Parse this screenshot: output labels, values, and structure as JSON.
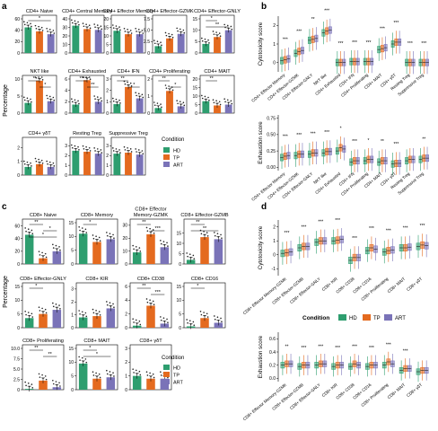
{
  "panel_letters": {
    "a": "a",
    "b": "b",
    "c": "c",
    "d": "d"
  },
  "colors": {
    "HD": "#2e9e6f",
    "TP": "#e46a1f",
    "ART": "#7a73b8",
    "frame": "#000000"
  },
  "legend_a": {
    "title": "Condition",
    "items": [
      "HD",
      "TP",
      "ART"
    ]
  },
  "legend_c": {
    "title": "Condition",
    "items": [
      "HD",
      "TP",
      "ART"
    ]
  },
  "legend_d": {
    "title": "Condition",
    "items": [
      "HD",
      "TP",
      "ART"
    ]
  },
  "ylabel_a": "Percentage",
  "ylabel_c": "Percentage",
  "chart_data": [
    {
      "type": "bar",
      "panel": "a",
      "categories": [
        "HD",
        "TP",
        "ART"
      ],
      "charts": [
        {
          "title": "CD4+ Naive",
          "ticks": [
            "0",
            "20",
            "40",
            "60"
          ],
          "ylim": [
            0,
            60
          ],
          "values": [
            45,
            38,
            33
          ],
          "sig": [
            {
              "pair": [
                0,
                2
              ],
              "label": "*"
            }
          ]
        },
        {
          "title": "CD4+ Central Memory",
          "ticks": [
            "0",
            "10",
            "20",
            "30",
            "40"
          ],
          "ylim": [
            0,
            40
          ],
          "values": [
            32,
            28,
            27
          ],
          "sig": []
        },
        {
          "title": "CD4+ Effector Memory",
          "ticks": [
            "0",
            "5",
            "10",
            "15",
            "20"
          ],
          "ylim": [
            0,
            20
          ],
          "values": [
            13,
            11,
            11
          ],
          "sig": []
        },
        {
          "title": "CD4+ Effector-GZMK",
          "ticks": [
            "0",
            "2.5",
            "5.0",
            "7.5"
          ],
          "ylim": [
            0,
            7.5
          ],
          "values": [
            1.5,
            3.2,
            4.2
          ],
          "sig": []
        },
        {
          "title": "CD4+ Effector-GNLY",
          "ticks": [
            "0",
            "5",
            "10",
            "15"
          ],
          "ylim": [
            0,
            15
          ],
          "values": [
            4,
            7,
            10
          ],
          "sig": [
            {
              "pair": [
                0,
                1
              ],
              "label": "*"
            },
            {
              "pair": [
                0,
                2
              ],
              "label": "**"
            }
          ]
        },
        {
          "title": "NKT like",
          "ticks": [
            "0",
            "5",
            "10"
          ],
          "ylim": [
            0,
            10
          ],
          "values": [
            3,
            9.5,
            3.5
          ],
          "sig": [
            {
              "pair": [
                0,
                1
              ],
              "label": "*"
            },
            {
              "pair": [
                1,
                2
              ],
              "label": "*"
            }
          ]
        },
        {
          "title": "CD4+ Exhausted",
          "ticks": [
            "0",
            "2",
            "4",
            "6"
          ],
          "ylim": [
            0,
            6
          ],
          "values": [
            1.5,
            5.8,
            2
          ],
          "sig": [
            {
              "pair": [
                0,
                1
              ],
              "label": "**"
            },
            {
              "pair": [
                1,
                2
              ],
              "label": "**"
            }
          ]
        },
        {
          "title": "CD4+ IFN",
          "ticks": [
            "0",
            "1",
            "2",
            "3"
          ],
          "ylim": [
            0,
            3
          ],
          "values": [
            0.8,
            2.3,
            1.3
          ],
          "sig": [
            {
              "pair": [
                0,
                1
              ],
              "label": "**"
            },
            {
              "pair": [
                1,
                2
              ],
              "label": "*"
            }
          ]
        },
        {
          "title": "CD4+ Proliferating",
          "ticks": [
            "0",
            "1",
            "2"
          ],
          "ylim": [
            0,
            2
          ],
          "values": [
            0.3,
            1.3,
            0.4
          ],
          "sig": [
            {
              "pair": [
                0,
                1
              ],
              "label": "**"
            },
            {
              "pair": [
                1,
                2
              ],
              "label": "*"
            }
          ]
        },
        {
          "title": "CD4+ MAIT",
          "ticks": [
            "0",
            "5",
            "10",
            "15",
            "20"
          ],
          "ylim": [
            0,
            20
          ],
          "values": [
            7,
            4.5,
            5
          ],
          "sig": [
            {
              "pair": [
                0,
                1
              ],
              "label": "**"
            }
          ]
        },
        {
          "title": "CD4+ γδT",
          "ticks": [
            "0",
            "1",
            "2"
          ],
          "ylim": [
            0,
            2.5
          ],
          "values": [
            0.6,
            0.8,
            0.6
          ],
          "sig": []
        },
        {
          "title": "Resting Treg",
          "ticks": [
            "0",
            "1",
            "2",
            "3"
          ],
          "ylim": [
            0,
            3.5
          ],
          "values": [
            2.5,
            2.4,
            2.2
          ],
          "sig": []
        },
        {
          "title": "Suppressive Treg",
          "ticks": [
            "0",
            "1",
            "2",
            "3"
          ],
          "ylim": [
            0,
            3.5
          ],
          "values": [
            2.2,
            2.3,
            2.1
          ],
          "sig": []
        }
      ]
    },
    {
      "type": "bar",
      "panel": "c",
      "categories": [
        "HD",
        "TP",
        "ART"
      ],
      "charts": [
        {
          "title": "CD8+ Naive",
          "ticks": [
            "0",
            "20",
            "40",
            "60"
          ],
          "ylim": [
            0,
            65
          ],
          "values": [
            46,
            9,
            20
          ],
          "sig": [
            {
              "pair": [
                0,
                1
              ],
              "label": "**"
            },
            {
              "pair": [
                1,
                2
              ],
              "label": "*"
            },
            {
              "pair": [
                0,
                2
              ],
              "label": "*"
            }
          ]
        },
        {
          "title": "CD8+ Memory",
          "ticks": [
            "0",
            "5",
            "10",
            "15"
          ],
          "ylim": [
            0,
            15
          ],
          "values": [
            11,
            8,
            9
          ],
          "sig": [
            {
              "pair": [
                0,
                1
              ],
              "label": "*"
            }
          ]
        },
        {
          "title": "CD8+ Effector\nMemory-GZMK",
          "ticks": [
            "0",
            "10",
            "20",
            "30"
          ],
          "ylim": [
            0,
            32
          ],
          "values": [
            9,
            23,
            13
          ],
          "sig": [
            {
              "pair": [
                0,
                1
              ],
              "label": "**"
            },
            {
              "pair": [
                1,
                2
              ],
              "label": "***"
            }
          ]
        },
        {
          "title": "CD8+ Effector-GZMB",
          "ticks": [
            "0",
            "5",
            "10",
            "15"
          ],
          "ylim": [
            0,
            20
          ],
          "values": [
            2,
            13,
            12
          ],
          "sig": [
            {
              "pair": [
                0,
                1
              ],
              "label": "**"
            },
            {
              "pair": [
                0,
                2
              ],
              "label": "**"
            }
          ]
        },
        {
          "title": "CD8+ Effector-GNLY",
          "ticks": [
            "0",
            "5",
            "10",
            "15"
          ],
          "ylim": [
            0,
            15
          ],
          "values": [
            3.5,
            5,
            6.5
          ],
          "sig": [
            {
              "pair": [
                0,
                1
              ],
              "label": "*"
            }
          ]
        },
        {
          "title": "CD8+ KIR",
          "ticks": [
            "0",
            "1",
            "2",
            "3"
          ],
          "ylim": [
            0,
            3.2
          ],
          "values": [
            0.8,
            0.9,
            1.5
          ],
          "sig": []
        },
        {
          "title": "CD8+ CD38",
          "ticks": [
            "0",
            "2",
            "4",
            "6"
          ],
          "ylim": [
            0,
            6
          ],
          "values": [
            0.3,
            3.2,
            0.6
          ],
          "sig": [
            {
              "pair": [
                0,
                1
              ],
              "label": "**"
            },
            {
              "pair": [
                1,
                2
              ],
              "label": "***"
            }
          ]
        },
        {
          "title": "CD8+ CD16",
          "ticks": [
            "0",
            "5",
            "10",
            "15"
          ],
          "ylim": [
            0,
            15
          ],
          "values": [
            0.5,
            3.5,
            1.8
          ],
          "sig": [
            {
              "pair": [
                0,
                1
              ],
              "label": "*"
            }
          ]
        },
        {
          "title": "CD8+ Proliferating",
          "ticks": [
            "0",
            "2.5",
            "5.0",
            "7.5",
            "10.0"
          ],
          "ylim": [
            0,
            10
          ],
          "values": [
            0.2,
            2.2,
            0.6
          ],
          "sig": [
            {
              "pair": [
                0,
                1
              ],
              "label": "**"
            },
            {
              "pair": [
                1,
                2
              ],
              "label": "**"
            }
          ]
        },
        {
          "title": "CD8+ MAIT",
          "ticks": [
            "0",
            "5",
            "10",
            "15"
          ],
          "ylim": [
            0,
            15
          ],
          "values": [
            9.5,
            4,
            4.5
          ],
          "sig": [
            {
              "pair": [
                0,
                1
              ],
              "label": "*"
            },
            {
              "pair": [
                0,
                2
              ],
              "label": "*"
            }
          ]
        },
        {
          "title": "CD8+ γδT",
          "ticks": [
            "0",
            "1",
            "2",
            "3"
          ],
          "ylim": [
            0,
            3
          ],
          "values": [
            1,
            0.8,
            0.8
          ],
          "sig": []
        }
      ]
    },
    {
      "type": "box",
      "panel": "b",
      "label": "Cytotoxicity score",
      "ticks": [
        "0",
        "1",
        "2"
      ],
      "ylim": [
        -0.5,
        2.5
      ],
      "categories": [
        "CD4+ Effector Memory",
        "CD4+ Effector-GZMK",
        "CD4+ Effector-GNLY",
        "NKT like",
        "CD4+ Exhausted",
        "CD4+ IFN",
        "CD4+ Proliferating",
        "CD4+ MAIT",
        "CD4+ γδT",
        "Resting Treg",
        "Suppressive Treg"
      ],
      "medians": [
        [
          0.1,
          0.15,
          0.2
        ],
        [
          0.5,
          0.6,
          0.65
        ],
        [
          1.2,
          1.25,
          1.3
        ],
        [
          1.6,
          1.7,
          1.75
        ],
        [
          0,
          0,
          0
        ],
        [
          0.05,
          0.05,
          0.05
        ],
        [
          0.05,
          0.05,
          0.05
        ],
        [
          0.7,
          0.75,
          0.8
        ],
        [
          1.0,
          1.1,
          1.1
        ],
        [
          0,
          0,
          0
        ],
        [
          0,
          0,
          0
        ]
      ],
      "sig": [
        "***",
        "***",
        "**",
        "***",
        "***",
        "***",
        "***",
        "***",
        "***",
        "***",
        "***"
      ]
    },
    {
      "type": "box",
      "panel": "b",
      "label": "Exhaustion score",
      "ticks": [
        "0.00",
        "0.25",
        "0.50",
        "0.75"
      ],
      "ylim": [
        -0.05,
        0.8
      ],
      "categories": [
        "CD4+ Effector Memory",
        "CD4+ Effector-GZMK",
        "CD4+ Effector-GNLY",
        "NKT like",
        "CD4+ Exhausted",
        "CD4+ IFN",
        "CD4+ Proliferating",
        "CD4+ MAIT",
        "CD4+ γδT",
        "Resting Treg",
        "Suppressive Treg"
      ],
      "medians": [
        [
          0.15,
          0.17,
          0.18
        ],
        [
          0.18,
          0.2,
          0.2
        ],
        [
          0.2,
          0.22,
          0.22
        ],
        [
          0.22,
          0.24,
          0.24
        ],
        [
          0.25,
          0.3,
          0.28
        ],
        [
          0.08,
          0.1,
          0.1
        ],
        [
          0.1,
          0.12,
          0.12
        ],
        [
          0.08,
          0.1,
          0.1
        ],
        [
          0.05,
          0.06,
          0.06
        ],
        [
          0.1,
          0.12,
          0.12
        ],
        [
          0.12,
          0.14,
          0.14
        ]
      ],
      "sig": [
        "***",
        "***",
        "***",
        "***",
        "*",
        "***",
        "*",
        "**",
        "***",
        "",
        "**"
      ]
    },
    {
      "type": "box",
      "panel": "d",
      "label": "Cytotoxicity score",
      "ticks": [
        "-1",
        "0",
        "1",
        "2"
      ],
      "ylim": [
        -1.5,
        2.5
      ],
      "categories": [
        "CD8+ Effector Memory-GZMK",
        "CD8+ Effector-GZMB",
        "CD8+ Effector-GNLY",
        "CD8+ KIR",
        "CD8+ CD38",
        "CD8+ CD16",
        "CD8+ Proliferating",
        "CD8+ MAIT",
        "CD8+ γδT"
      ],
      "medians": [
        [
          0.1,
          0.15,
          0.2
        ],
        [
          0.5,
          0.6,
          0.6
        ],
        [
          0.9,
          1.0,
          1.0
        ],
        [
          1.0,
          1.05,
          1.1
        ],
        [
          -0.4,
          -0.2,
          -0.2
        ],
        [
          0.3,
          0.5,
          0.4
        ],
        [
          0.2,
          0.3,
          0.35
        ],
        [
          0.5,
          0.5,
          0.55
        ],
        [
          0.6,
          0.7,
          0.65
        ]
      ],
      "sig": [
        "***",
        "***",
        "***",
        "***",
        "***",
        "***",
        "***",
        "***",
        "***"
      ]
    },
    {
      "type": "box",
      "panel": "d",
      "label": "Exhaustion score",
      "ticks": [
        "0.0",
        "0.2",
        "0.4",
        "0.6"
      ],
      "ylim": [
        -0.05,
        0.7
      ],
      "categories": [
        "CD8+ Effector Memory-GZMK",
        "CD8+ Effector-GZMB",
        "CD8+ Effector-GNLY",
        "CD8+ KIR",
        "CD8+ CD38",
        "CD8+ CD16",
        "CD8+ Proliferating",
        "CD8+ MAIT",
        "CD8+ γδT"
      ],
      "medians": [
        [
          0.2,
          0.22,
          0.22
        ],
        [
          0.18,
          0.2,
          0.2
        ],
        [
          0.2,
          0.22,
          0.22
        ],
        [
          0.18,
          0.2,
          0.2
        ],
        [
          0.18,
          0.22,
          0.2
        ],
        [
          0.18,
          0.2,
          0.2
        ],
        [
          0.2,
          0.25,
          0.22
        ],
        [
          0.12,
          0.15,
          0.15
        ],
        [
          0.1,
          0.12,
          0.12
        ]
      ],
      "sig": [
        "**",
        "***",
        "***",
        "***",
        "***",
        "***",
        "***",
        "***",
        ""
      ]
    }
  ]
}
